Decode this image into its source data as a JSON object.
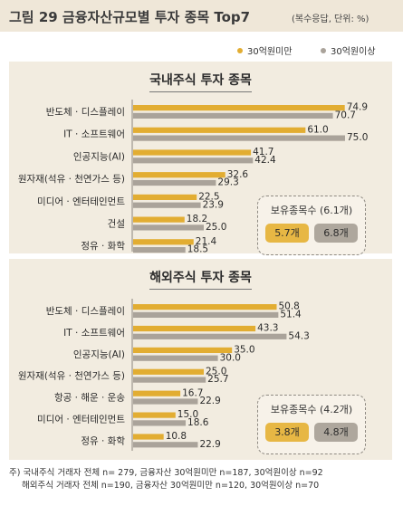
{
  "header": {
    "title": "그림 29  금융자산규모별 투자 종목 Top7",
    "note": "(복수응답, 단위: %)"
  },
  "legend": [
    {
      "label": "30억원미만",
      "color": "#e2ad32"
    },
    {
      "label": "30억원이상",
      "color": "#aaa39a"
    }
  ],
  "colors": {
    "under": "#e2ad32",
    "over": "#aaa39a"
  },
  "chart_data": [
    {
      "type": "bar",
      "title": "국내주식 투자 종목",
      "categories": [
        "반도체 · 디스플레이",
        "IT · 소프트웨어",
        "인공지능(AI)",
        "원자재(석유 · 천연가스 등)",
        "미디어 · 엔터테인먼트",
        "건설",
        "정유 · 화학"
      ],
      "series": [
        {
          "name": "30억원미만",
          "values": [
            74.9,
            61.0,
            41.7,
            32.6,
            22.5,
            18.2,
            21.4
          ]
        },
        {
          "name": "30억원이상",
          "values": [
            70.7,
            75.0,
            42.4,
            29.3,
            23.9,
            25.0,
            18.5
          ]
        }
      ],
      "value_labels": [
        [
          "74.9",
          "61.0",
          "41.7",
          "32.6",
          "22.5",
          "18.2",
          "21.4"
        ],
        [
          "70.7",
          "75.0",
          "42.4",
          "29.3",
          "23.9",
          "25.0",
          "18.5"
        ]
      ],
      "xlim": [
        0,
        80
      ],
      "holding": {
        "title": "보유종목수 (6.1개)",
        "under": "5.7개",
        "over": "6.8개"
      }
    },
    {
      "type": "bar",
      "title": "해외주식 투자 종목",
      "categories": [
        "반도체 · 디스플레이",
        "IT · 소프트웨어",
        "인공지능(AI)",
        "원자재(석유 · 천연가스 등)",
        "항공 · 해운 · 운송",
        "미디어 · 엔터테인먼트",
        "정유 · 화학"
      ],
      "series": [
        {
          "name": "30억원미만",
          "values": [
            50.8,
            43.3,
            35.0,
            25.0,
            16.7,
            15.0,
            10.8
          ]
        },
        {
          "name": "30억원이상",
          "values": [
            51.4,
            54.3,
            30.0,
            25.7,
            22.9,
            18.6,
            22.9
          ]
        }
      ],
      "value_labels": [
        [
          "50.8",
          "43.3",
          "35.0",
          "25.0",
          "16.7",
          "15.0",
          "10.8"
        ],
        [
          "51.4",
          "54.3",
          "30.0",
          "25.7",
          "22.9",
          "18.6",
          "22.9"
        ]
      ],
      "xlim": [
        0,
        80
      ],
      "holding": {
        "title": "보유종목수 (4.2개)",
        "under": "3.8개",
        "over": "4.8개"
      }
    }
  ],
  "footnote": [
    "주) 국내주식 거래자 전체 n= 279, 금융자산 30억원미만 n=187, 30억원이상  n=92",
    "해외주식 거래자 전체 n=190, 금융자산  30억원미만 n=120, 30억원이상  n=70"
  ]
}
